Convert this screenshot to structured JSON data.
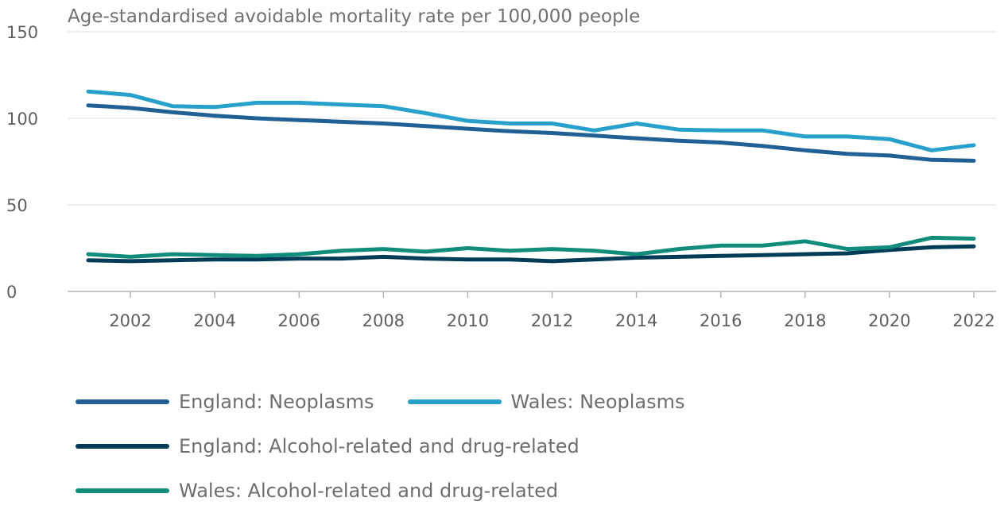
{
  "chart_data": {
    "type": "line",
    "ylabel": "Age-standardised avoidable mortality rate per 100,000 people",
    "ylim": [
      0,
      150
    ],
    "xlim": [
      2001,
      2022
    ],
    "yticks": [
      0,
      50,
      100,
      150
    ],
    "xticks": [
      2002,
      2004,
      2006,
      2008,
      2010,
      2012,
      2014,
      2016,
      2018,
      2020,
      2022
    ],
    "grid": "horizontal",
    "legend_position": "bottom",
    "x": [
      2001,
      2002,
      2003,
      2004,
      2005,
      2006,
      2007,
      2008,
      2009,
      2010,
      2011,
      2012,
      2013,
      2014,
      2015,
      2016,
      2017,
      2018,
      2019,
      2020,
      2021,
      2022
    ],
    "series": [
      {
        "name": "England: Neoplasms",
        "color": "#206095",
        "values": [
          107.5,
          106,
          103.5,
          101.5,
          100,
          99,
          98,
          97,
          95.5,
          94,
          92.5,
          91.5,
          90,
          88.5,
          87,
          86,
          84,
          81.5,
          79.5,
          78.5,
          76,
          75.5
        ]
      },
      {
        "name": "Wales: Neoplasms",
        "color": "#27a0cc",
        "values": [
          115.5,
          113.5,
          107,
          106.5,
          109,
          109,
          108,
          107,
          103,
          98.5,
          97,
          97,
          93,
          97,
          93.5,
          93,
          93,
          89.5,
          89.5,
          88,
          81.5,
          84.5
        ]
      },
      {
        "name": "England: Alcohol-related and drug-related",
        "color": "#003c57",
        "values": [
          18,
          17.5,
          18,
          18.5,
          18.5,
          19,
          19,
          20,
          19,
          18.5,
          18.5,
          17.5,
          18.5,
          19.5,
          20,
          20.5,
          21,
          21.5,
          22,
          24,
          25.5,
          26
        ]
      },
      {
        "name": "Wales: Alcohol-related and drug-related",
        "color": "#118c7b",
        "values": [
          21.5,
          20,
          21.5,
          21,
          20.5,
          21.5,
          23.5,
          24.5,
          23,
          25,
          23.5,
          24.5,
          23.5,
          21.5,
          24.5,
          26.5,
          26.5,
          29,
          24.5,
          25.5,
          31,
          30.5
        ]
      }
    ]
  }
}
